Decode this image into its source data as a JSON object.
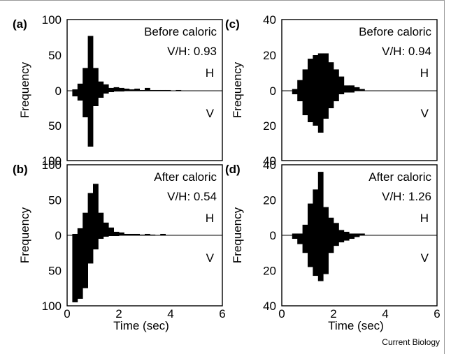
{
  "credit": "Current Biology",
  "axis_label_x": "Time (sec)",
  "axis_label_y": "Frequency",
  "color_bars": "#000000",
  "chart_data": [
    {
      "type": "bar",
      "panel": "(a)",
      "annotation": "Before caloric",
      "ratio_text": "V/H: 0.93",
      "upper_label": "H",
      "lower_label": "V",
      "xlim": [
        0,
        6
      ],
      "ylim_up": [
        0,
        100
      ],
      "ylim_down": [
        0,
        100
      ],
      "y_ticks_up": [
        "100",
        "50",
        "0"
      ],
      "y_ticks_down": [
        "50",
        "100"
      ],
      "x_ticks": [],
      "bin_width": 0.2,
      "bins_start": [
        0.2,
        0.4,
        0.6,
        0.8,
        1.0,
        1.2,
        1.4,
        1.6,
        1.8,
        2.0,
        2.2,
        2.4,
        2.6,
        2.8,
        3.0,
        3.2,
        3.4,
        3.6,
        3.8,
        4.2
      ],
      "H": [
        2,
        10,
        32,
        77,
        32,
        13,
        9,
        4,
        5,
        4,
        3,
        2,
        3,
        1,
        4,
        1,
        1,
        1,
        1,
        1
      ],
      "V": [
        8,
        14,
        38,
        80,
        22,
        10,
        4,
        2,
        1,
        1,
        0,
        0,
        0,
        0,
        0,
        0,
        0,
        0,
        0,
        0
      ]
    },
    {
      "type": "bar",
      "panel": "(b)",
      "annotation": "After caloric",
      "ratio_text": "V/H: 0.54",
      "upper_label": "H",
      "lower_label": "V",
      "xlim": [
        0,
        6
      ],
      "ylim_up": [
        0,
        100
      ],
      "ylim_down": [
        0,
        100
      ],
      "y_ticks_up": [
        "100",
        "50",
        "0"
      ],
      "y_ticks_down": [
        "50",
        "100"
      ],
      "x_ticks": [
        "0",
        "2",
        "4",
        "6"
      ],
      "bin_width": 0.2,
      "bins_start": [
        0.2,
        0.4,
        0.6,
        0.8,
        1.0,
        1.2,
        1.4,
        1.6,
        1.8,
        2.0,
        2.2,
        2.4,
        2.6,
        2.8,
        3.0,
        3.2,
        3.6
      ],
      "H": [
        2,
        10,
        32,
        60,
        73,
        32,
        18,
        11,
        5,
        4,
        2,
        2,
        2,
        1,
        2,
        1,
        2
      ],
      "V": [
        95,
        90,
        75,
        40,
        20,
        5,
        2,
        1,
        1,
        0,
        0,
        0,
        0,
        0,
        0,
        0,
        0
      ]
    },
    {
      "type": "bar",
      "panel": "(c)",
      "annotation": "Before caloric",
      "ratio_text": "V/H: 0.94",
      "upper_label": "H",
      "lower_label": "V",
      "xlim": [
        0,
        6
      ],
      "ylim_up": [
        0,
        40
      ],
      "ylim_down": [
        0,
        40
      ],
      "y_ticks_up": [
        "40",
        "20",
        "0"
      ],
      "y_ticks_down": [
        "20",
        "40"
      ],
      "x_ticks": [],
      "bin_width": 0.2,
      "bins_start": [
        0.4,
        0.6,
        0.8,
        1.0,
        1.2,
        1.4,
        1.6,
        1.8,
        2.0,
        2.2,
        2.4,
        2.6,
        2.8,
        3.0
      ],
      "H": [
        1,
        6,
        12,
        18,
        20,
        21,
        21,
        16,
        12,
        8,
        3,
        3,
        2,
        1
      ],
      "V": [
        2,
        6,
        14,
        18,
        20,
        24,
        16,
        10,
        6,
        2,
        1,
        1,
        0,
        0
      ]
    },
    {
      "type": "bar",
      "panel": "(d)",
      "annotation": "After caloric",
      "ratio_text": "V/H: 1.26",
      "upper_label": "H",
      "lower_label": "V",
      "xlim": [
        0,
        6
      ],
      "ylim_up": [
        0,
        40
      ],
      "ylim_down": [
        0,
        40
      ],
      "y_ticks_up": [
        "40",
        "20",
        "0"
      ],
      "y_ticks_down": [
        "20",
        "40"
      ],
      "x_ticks": [
        "0",
        "2",
        "4",
        "6"
      ],
      "bin_width": 0.2,
      "bins_start": [
        0.4,
        0.6,
        0.8,
        1.0,
        1.2,
        1.4,
        1.6,
        1.8,
        2.0,
        2.2,
        2.4,
        2.6,
        2.8,
        3.0
      ],
      "H": [
        1,
        1,
        6,
        18,
        26,
        36,
        16,
        10,
        7,
        3,
        2,
        1,
        1,
        1
      ],
      "V": [
        2,
        5,
        10,
        18,
        23,
        26,
        22,
        10,
        6,
        4,
        3,
        2,
        1,
        0
      ]
    }
  ]
}
